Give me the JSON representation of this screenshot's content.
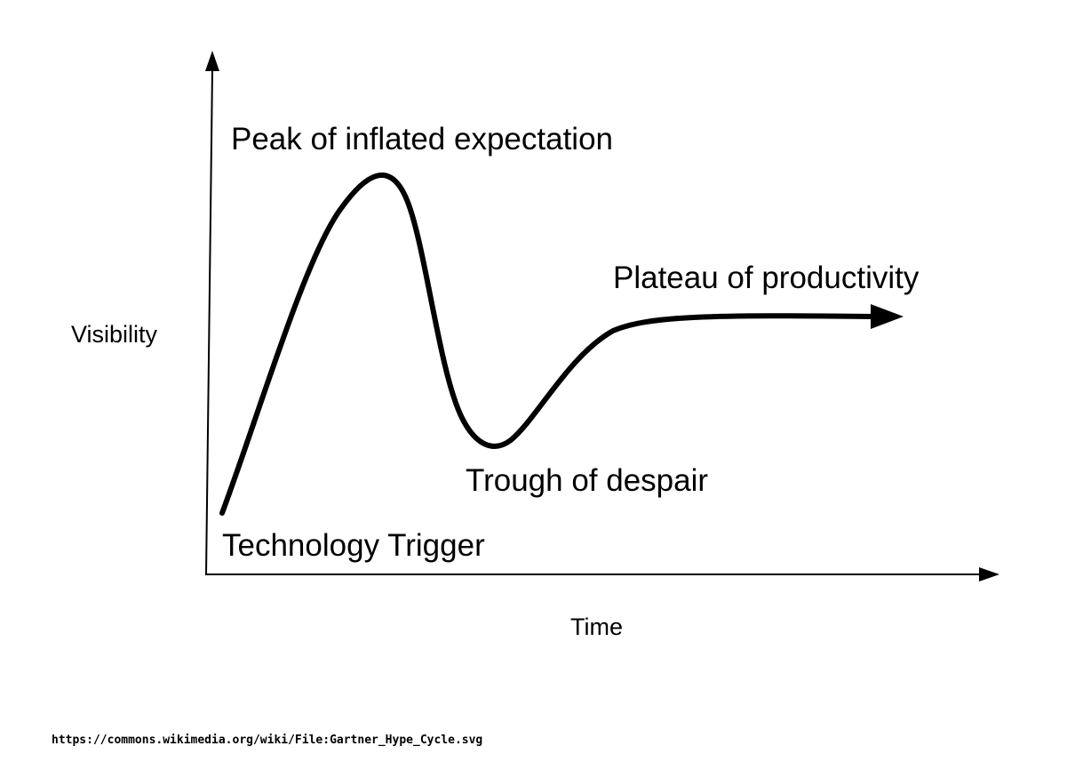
{
  "diagram": {
    "axes": {
      "x_label": "Time",
      "y_label": "Visibility"
    },
    "phases": {
      "trigger": "Technology Trigger",
      "peak": "Peak of inflated expectation",
      "trough": "Trough of despair",
      "plateau": "Plateau of productivity"
    },
    "colors": {
      "ink": "#000000",
      "background": "#ffffff"
    }
  },
  "source_url": "https://commons.wikimedia.org/wiki/File:Gartner_Hype_Cycle.svg"
}
